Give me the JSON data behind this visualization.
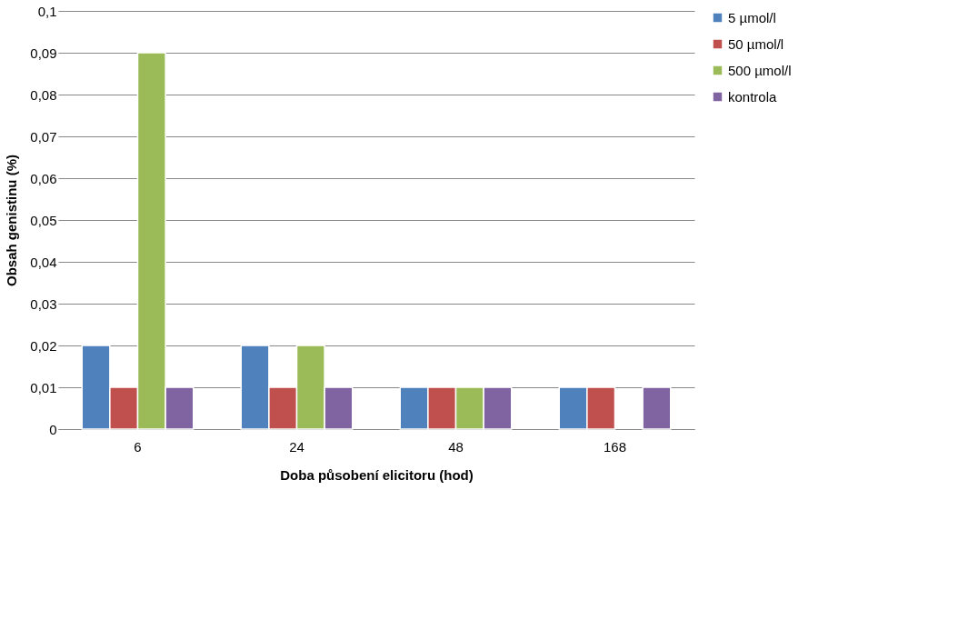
{
  "chart_data": {
    "type": "bar",
    "xlabel": "Doba působení elicitoru (hod)",
    "ylabel": "Obsah genistinu (%)",
    "categories": [
      "6",
      "24",
      "48",
      "168"
    ],
    "series": [
      {
        "name": "5 µmol/l",
        "color": "#4f81bd",
        "values": [
          0.02,
          0.02,
          0.01,
          0.01
        ]
      },
      {
        "name": "50 µmol/l",
        "color": "#c0504d",
        "values": [
          0.01,
          0.01,
          0.01,
          0.01
        ]
      },
      {
        "name": "500 µmol/l",
        "color": "#9bbb59",
        "values": [
          0.09,
          0.02,
          0.01,
          null
        ]
      },
      {
        "name": "kontrola",
        "color": "#8064a2",
        "values": [
          0.01,
          0.01,
          0.01,
          0.01
        ]
      }
    ],
    "ylim": [
      0,
      0.1
    ],
    "yticks": [
      {
        "value": 0,
        "label": "0"
      },
      {
        "value": 0.01,
        "label": "0,01"
      },
      {
        "value": 0.02,
        "label": "0,02"
      },
      {
        "value": 0.03,
        "label": "0,03"
      },
      {
        "value": 0.04,
        "label": "0,04"
      },
      {
        "value": 0.05,
        "label": "0,05"
      },
      {
        "value": 0.06,
        "label": "0,06"
      },
      {
        "value": 0.07,
        "label": "0,07"
      },
      {
        "value": 0.08,
        "label": "0,08"
      },
      {
        "value": 0.09,
        "label": "0,09"
      },
      {
        "value": 0.1,
        "label": "0,1"
      }
    ],
    "grid": "y",
    "legend": "right"
  }
}
